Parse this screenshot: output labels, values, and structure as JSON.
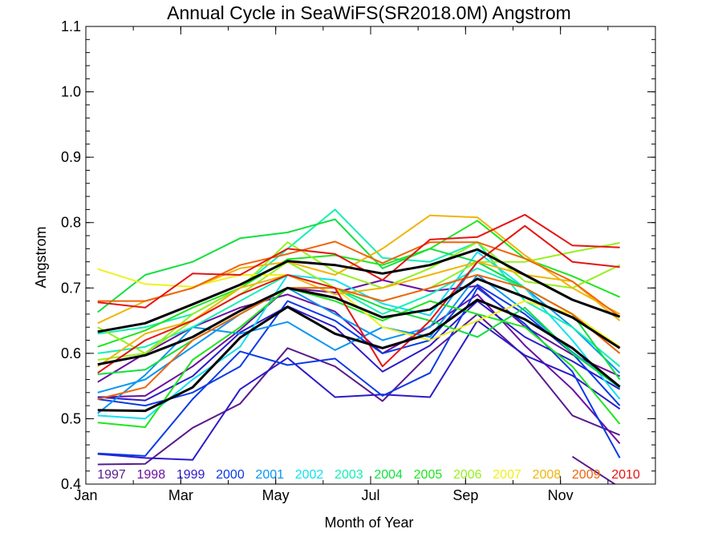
{
  "chart_data": {
    "type": "line",
    "title": "Annual Cycle in SeaWiFS(SR2018.0M) Angstrom",
    "xlabel": "Month of Year",
    "ylabel": "Angstrom",
    "xlim": [
      1,
      13
    ],
    "ylim": [
      0.4,
      1.1
    ],
    "x": [
      1.25,
      2.25,
      3.25,
      4.25,
      5.25,
      6.25,
      7.25,
      8.25,
      9.25,
      10.25,
      11.25,
      12.25
    ],
    "x_ticks": [
      {
        "value": 1,
        "label": "Jan"
      },
      {
        "value": 3,
        "label": "Mar"
      },
      {
        "value": 5,
        "label": "May"
      },
      {
        "value": 7,
        "label": "Jul"
      },
      {
        "value": 9,
        "label": "Sep"
      },
      {
        "value": 11,
        "label": "Nov"
      }
    ],
    "y_ticks": [
      0.4,
      0.5,
      0.6,
      0.7,
      0.8,
      0.9,
      1.0,
      1.1
    ],
    "grid": false,
    "legend_position": "bottom",
    "legend": [
      {
        "label": "1997",
        "color": "#5a1a8c"
      },
      {
        "label": "1998",
        "color": "#6a0fa0"
      },
      {
        "label": "1999",
        "color": "#2c1ac8"
      },
      {
        "label": "2000",
        "color": "#0a3ae6"
      },
      {
        "label": "2001",
        "color": "#0a96f0"
      },
      {
        "label": "2002",
        "color": "#12e0f0"
      },
      {
        "label": "2003",
        "color": "#12f0b4"
      },
      {
        "label": "2004",
        "color": "#12e040"
      },
      {
        "label": "2005",
        "color": "#1ee61e"
      },
      {
        "label": "2006",
        "color": "#96f01e"
      },
      {
        "label": "2007",
        "color": "#f0f01e"
      },
      {
        "label": "2008",
        "color": "#f0b40a"
      },
      {
        "label": "2009",
        "color": "#f0640a"
      },
      {
        "label": "2010",
        "color": "#e61414"
      }
    ],
    "series": [
      {
        "color": "#5a1a8c",
        "values": [
          0.43,
          0.431,
          0.486,
          0.523,
          0.608,
          0.58,
          0.527,
          0.6,
          0.66,
          0.595,
          0.505,
          0.475
        ]
      },
      {
        "color": "#5a1a8c",
        "values": [
          null,
          null,
          null,
          null,
          null,
          null,
          null,
          null,
          null,
          null,
          0.442,
          0.395
        ]
      },
      {
        "color": "#6a0fa0",
        "values": [
          0.533,
          0.535,
          0.58,
          0.636,
          0.7,
          0.693,
          0.712,
          0.695,
          0.703,
          0.641,
          0.598,
          0.565
        ]
      },
      {
        "color": "#6a0fa0",
        "values": [
          0.556,
          0.6,
          0.64,
          0.67,
          0.69,
          0.664,
          0.6,
          0.641,
          0.69,
          0.612,
          0.545,
          0.462
        ]
      },
      {
        "color": "#2c1ac8",
        "values": [
          0.446,
          0.44,
          0.437,
          0.545,
          0.593,
          0.533,
          0.537,
          0.533,
          0.65,
          0.597,
          0.566,
          0.515
        ]
      },
      {
        "color": "#2c1ac8",
        "values": [
          0.533,
          0.528,
          0.565,
          0.632,
          0.672,
          0.64,
          0.572,
          0.612,
          0.68,
          0.625,
          0.588,
          0.545
        ]
      },
      {
        "color": "#0a3ae6",
        "values": [
          0.447,
          0.443,
          0.53,
          0.603,
          0.582,
          0.592,
          0.535,
          0.57,
          0.7,
          0.645,
          0.572,
          0.44
        ]
      },
      {
        "color": "#0a3ae6",
        "values": [
          0.53,
          0.52,
          0.54,
          0.58,
          0.68,
          0.65,
          0.6,
          0.62,
          0.705,
          0.66,
          0.6,
          0.52
        ]
      },
      {
        "color": "#0a96f0",
        "values": [
          0.508,
          0.567,
          0.64,
          0.63,
          0.648,
          0.605,
          0.64,
          0.625,
          0.72,
          0.665,
          0.602,
          0.547
        ]
      },
      {
        "color": "#0a96f0",
        "values": [
          0.54,
          0.56,
          0.61,
          0.66,
          0.7,
          0.66,
          0.62,
          0.64,
          0.74,
          0.7,
          0.64,
          0.57
        ]
      },
      {
        "color": "#12e0f0",
        "values": [
          0.505,
          0.5,
          0.56,
          0.61,
          0.72,
          0.712,
          0.676,
          0.658,
          0.755,
          0.7,
          0.62,
          0.53
        ]
      },
      {
        "color": "#12f0b4",
        "values": [
          0.63,
          0.64,
          0.66,
          0.7,
          0.76,
          0.82,
          0.746,
          0.74,
          0.77,
          0.68,
          0.64,
          0.58
        ]
      },
      {
        "color": "#12f0b4",
        "values": [
          0.6,
          0.61,
          0.64,
          0.68,
          0.72,
          0.7,
          0.66,
          0.69,
          0.73,
          0.7,
          0.66,
          0.6
        ]
      },
      {
        "color": "#12e040",
        "values": [
          0.663,
          0.72,
          0.74,
          0.776,
          0.785,
          0.805,
          0.73,
          0.76,
          0.74,
          0.7,
          0.66,
          0.56
        ]
      },
      {
        "color": "#12e040",
        "values": [
          0.568,
          0.575,
          0.62,
          0.66,
          0.7,
          0.7,
          0.67,
          0.65,
          0.625,
          0.67,
          0.6,
          0.548
        ]
      },
      {
        "color": "#1ee61e",
        "values": [
          0.61,
          0.635,
          0.67,
          0.7,
          0.744,
          0.75,
          0.735,
          0.76,
          0.803,
          0.745,
          0.718,
          0.686
        ]
      },
      {
        "color": "#1ee61e",
        "values": [
          0.494,
          0.487,
          0.59,
          0.64,
          0.7,
          0.68,
          0.65,
          0.68,
          0.66,
          0.64,
          0.58,
          0.492
        ]
      },
      {
        "color": "#96f01e",
        "values": [
          0.59,
          0.6,
          0.66,
          0.7,
          0.77,
          0.725,
          0.7,
          0.73,
          0.77,
          0.71,
          0.7,
          0.735
        ]
      },
      {
        "color": "#96f01e",
        "values": [
          0.64,
          0.6,
          0.65,
          0.69,
          0.74,
          0.7,
          0.68,
          0.7,
          0.74,
          0.74,
          0.755,
          0.769
        ]
      },
      {
        "color": "#f0f01e",
        "values": [
          0.729,
          0.706,
          0.702,
          0.72,
          0.72,
          0.7,
          0.64,
          0.62,
          0.65,
          0.68,
          0.66,
          0.61
        ]
      },
      {
        "color": "#f0b40a",
        "values": [
          0.646,
          0.68,
          0.7,
          0.73,
          0.74,
          0.72,
          0.76,
          0.811,
          0.808,
          0.75,
          0.7,
          0.66
        ]
      },
      {
        "color": "#f0b40a",
        "values": [
          0.58,
          0.63,
          0.65,
          0.7,
          0.72,
          0.69,
          0.7,
          0.72,
          0.74,
          0.72,
          0.71,
          0.65
        ]
      },
      {
        "color": "#f0640a",
        "values": [
          0.68,
          0.68,
          0.7,
          0.735,
          0.752,
          0.771,
          0.738,
          0.77,
          0.77,
          0.745,
          0.71,
          0.656
        ]
      },
      {
        "color": "#f0640a",
        "values": [
          0.53,
          0.548,
          0.62,
          0.66,
          0.7,
          0.7,
          0.68,
          0.7,
          0.72,
          0.7,
          0.66,
          0.6
        ]
      },
      {
        "color": "#e61414",
        "values": [
          0.678,
          0.67,
          0.722,
          0.72,
          0.76,
          0.752,
          0.712,
          0.774,
          0.778,
          0.812,
          0.765,
          0.762
        ]
      },
      {
        "color": "#e61414",
        "values": [
          0.57,
          0.62,
          0.65,
          0.69,
          0.72,
          0.7,
          0.58,
          0.65,
          0.74,
          0.795,
          0.74,
          0.732
        ]
      },
      {
        "color": "#000000",
        "width": 3,
        "values": [
          0.633,
          0.646,
          0.675,
          0.705,
          0.741,
          0.735,
          0.722,
          0.735,
          0.759,
          0.72,
          0.682,
          0.656
        ]
      },
      {
        "color": "#000000",
        "width": 3,
        "values": [
          0.583,
          0.597,
          0.625,
          0.665,
          0.7,
          0.685,
          0.655,
          0.667,
          0.714,
          0.686,
          0.655,
          0.608
        ]
      },
      {
        "color": "#000000",
        "width": 3,
        "values": [
          0.513,
          0.512,
          0.548,
          0.624,
          0.671,
          0.63,
          0.608,
          0.63,
          0.682,
          0.652,
          0.608,
          0.549
        ]
      }
    ]
  }
}
